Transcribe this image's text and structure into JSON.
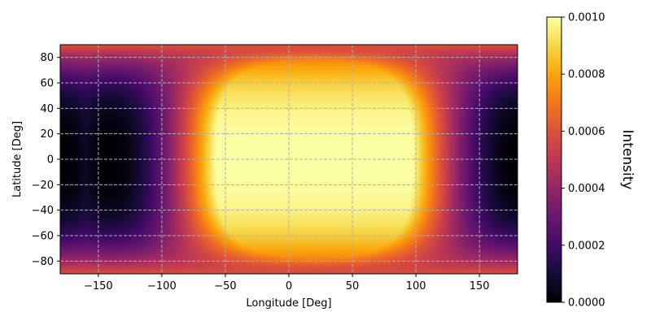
{
  "chart_data": {
    "type": "heatmap",
    "title": "",
    "xlabel": "Longitude [Deg]",
    "ylabel": "Latitude [Deg]",
    "xlim": [
      -180,
      180
    ],
    "ylim": [
      -90,
      90
    ],
    "xticks": [
      -150,
      -100,
      -50,
      0,
      50,
      100,
      150
    ],
    "yticks": [
      -80,
      -60,
      -40,
      -20,
      0,
      20,
      40,
      60,
      80
    ],
    "grid": true,
    "colormap": "inferno",
    "colorbar": {
      "label": "Intensity",
      "range": [
        0.0,
        0.001
      ],
      "ticks": [
        0.0,
        0.0002,
        0.0004,
        0.0006,
        0.0008,
        0.001
      ],
      "tick_labels": [
        "0.0000",
        "0.0002",
        "0.0004",
        "0.0006",
        "0.0008",
        "0.0010"
      ]
    },
    "field": {
      "description": "Intensity peaks (saturated at 0.0010) in a broad region centred near longitude 20, latitude 0 and falls to 0.0000 near longitude ±180 at low latitudes; values near the poles are about 0.0006.",
      "peak_center_lon": 20,
      "saturation_lon_halfwidth": 55,
      "saturation_lat_halfwidth": 62,
      "minimum_lon": -160,
      "minimum_value": 0.0,
      "polar_value": 0.0006
    }
  }
}
